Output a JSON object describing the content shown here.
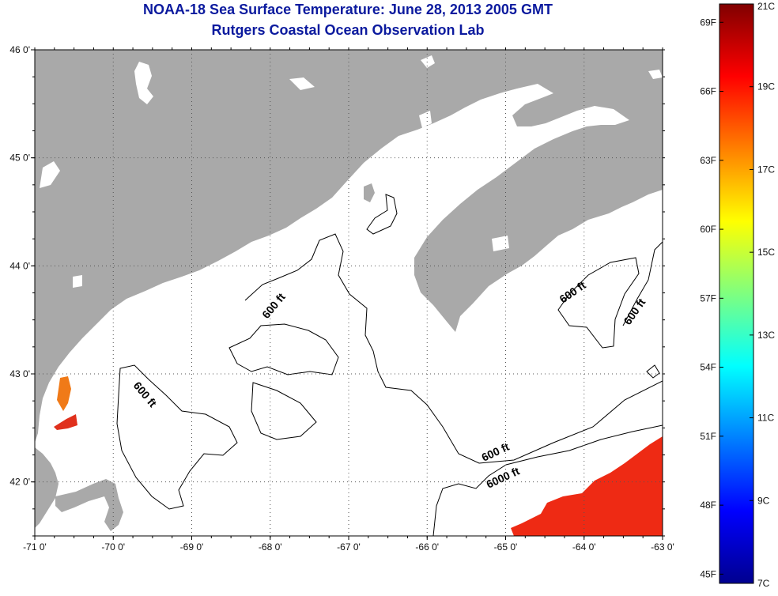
{
  "title_line1": "NOAA-18 Sea Surface Temperature:  June 28, 2013 2005 GMT",
  "title_line2": "Rutgers Coastal Ocean Observation Lab",
  "map": {
    "lon_range": [
      -71.0,
      -63.0
    ],
    "lat_range": [
      41.5,
      46.0
    ],
    "grid": "dotted",
    "lon_ticks": [
      "-71 0'",
      "-70 0'",
      "-69 0'",
      "-68 0'",
      "-67 0'",
      "-66 0'",
      "-65 0'",
      "-64 0'",
      "-63 0'"
    ],
    "lat_ticks": [
      "46 0'",
      "45 0'",
      "44 0'",
      "43 0'",
      "42 0'"
    ],
    "land_color": "#a9a9a9",
    "contour_labels": [
      "600 ft",
      "600 ft",
      "600 ft",
      "600 ft",
      "600 ft",
      "6000 ft"
    ]
  },
  "colorbar": {
    "range_c": [
      7,
      21
    ],
    "celsius_labels": [
      "21C",
      "19C",
      "17C",
      "15C",
      "13C",
      "11C",
      "9C",
      "7C"
    ],
    "fahrenheit_labels": [
      "69F",
      "66F",
      "63F",
      "60F",
      "57F",
      "54F",
      "51F",
      "48F",
      "45F"
    ]
  }
}
